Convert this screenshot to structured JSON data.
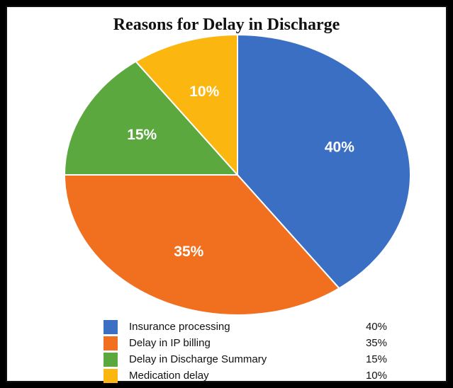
{
  "chart_data": {
    "type": "pie",
    "title": "Reasons for Delay in Discharge",
    "slices": [
      {
        "label": "Insurance processing",
        "value": 40,
        "display": "40%",
        "color": "#3a6fc4"
      },
      {
        "label": "Delay in IP billing",
        "value": 35,
        "display": "35%",
        "color": "#f07020"
      },
      {
        "label": "Delay in Discharge Summary",
        "value": 15,
        "display": "15%",
        "color": "#5aa83e"
      },
      {
        "label": "Medication delay",
        "value": 10,
        "display": "10%",
        "color": "#fbb710"
      }
    ],
    "legend_placement": "bottom"
  }
}
